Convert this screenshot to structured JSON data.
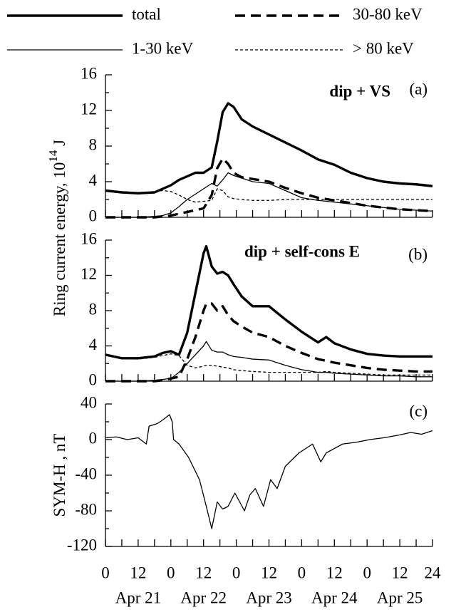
{
  "chart_data": [
    {
      "type": "line",
      "title": "dip + VS",
      "label": "(a)",
      "ylabel": [
        "Ring current energy, 10",
        "14",
        " J"
      ],
      "legend": "top",
      "xlim": [
        0,
        120
      ],
      "xticks": [
        0,
        12,
        24,
        36,
        48,
        60,
        72,
        84,
        96,
        108,
        120
      ],
      "ylim": [
        0,
        16
      ],
      "yticks": [
        0,
        4,
        8,
        12,
        16
      ],
      "x": [
        0,
        6,
        12,
        18,
        21,
        24,
        27,
        30,
        33,
        36,
        39,
        41,
        43,
        45,
        47,
        50,
        54,
        60,
        66,
        72,
        78,
        84,
        90,
        96,
        102,
        108,
        114,
        120
      ],
      "series": [
        {
          "name": "total",
          "color": "#000000",
          "style": "solid",
          "weight": "bold",
          "values": [
            3.0,
            2.8,
            2.7,
            2.8,
            3.2,
            3.6,
            4.2,
            4.6,
            5.0,
            5.0,
            5.6,
            8.5,
            11.8,
            12.8,
            12.4,
            11.0,
            10.2,
            9.3,
            8.4,
            7.5,
            6.5,
            5.9,
            5.0,
            4.4,
            4.0,
            3.8,
            3.7,
            3.5
          ]
        },
        {
          "name": "30-80 keV",
          "color": "#000000",
          "style": "dashed",
          "weight": "bold",
          "values": [
            0,
            0,
            0,
            0,
            0.1,
            0.2,
            0.4,
            0.6,
            0.8,
            1.0,
            2.5,
            5.5,
            6.6,
            6.0,
            5.0,
            4.5,
            4.3,
            4.0,
            3.3,
            2.7,
            2.2,
            1.9,
            1.6,
            1.3,
            1.1,
            0.9,
            0.8,
            0.7
          ]
        },
        {
          "name": "1-30 keV",
          "color": "#000000",
          "style": "solid",
          "weight": "normal",
          "values": [
            0,
            0,
            0,
            0.1,
            0.2,
            0.5,
            1.2,
            2.0,
            2.6,
            3.2,
            3.8,
            3.5,
            4.2,
            5.0,
            4.7,
            4.4,
            4.0,
            3.8,
            3.0,
            2.2,
            1.9,
            1.7,
            1.5,
            1.3,
            1.1,
            0.9,
            0.8,
            0.7
          ]
        },
        {
          "name": "> 80 keV",
          "color": "#000000",
          "style": "dashed",
          "weight": "normal",
          "values": [
            3.0,
            2.8,
            2.7,
            2.9,
            3.0,
            2.9,
            2.5,
            2.0,
            1.7,
            1.8,
            1.9,
            3.2,
            3.0,
            2.3,
            2.1,
            2.0,
            1.9,
            1.9,
            2.0,
            2.0,
            2.0,
            2.0,
            2.0,
            2.0,
            2.0,
            2.0,
            2.0,
            2.0
          ]
        }
      ]
    },
    {
      "type": "line",
      "title": "dip + self-cons E",
      "label": "(b)",
      "xlim": [
        0,
        120
      ],
      "xticks": [
        0,
        12,
        24,
        36,
        48,
        60,
        72,
        84,
        96,
        108,
        120
      ],
      "ylim": [
        0,
        16
      ],
      "yticks": [
        0,
        4,
        8,
        12,
        16
      ],
      "x": [
        0,
        6,
        12,
        18,
        21,
        24,
        27,
        30,
        33,
        36,
        37,
        39,
        41,
        43,
        45,
        47,
        50,
        54,
        60,
        66,
        72,
        78,
        81,
        84,
        90,
        96,
        102,
        108,
        114,
        120
      ],
      "series": [
        {
          "color": "#000000",
          "style": "solid",
          "weight": "bold",
          "values": [
            3.0,
            2.6,
            2.6,
            2.8,
            3.2,
            3.4,
            3.0,
            5.5,
            10.0,
            14.5,
            15.3,
            13.0,
            12.2,
            12.4,
            12.0,
            11.0,
            9.6,
            8.5,
            8.5,
            7.0,
            5.6,
            4.4,
            5.0,
            4.3,
            3.6,
            3.1,
            2.9,
            2.8,
            2.8,
            2.8
          ]
        },
        {
          "color": "#000000",
          "style": "dashed",
          "weight": "bold",
          "values": [
            0,
            0,
            0,
            0,
            0.1,
            0.3,
            0.5,
            2.5,
            5.0,
            8.0,
            8.8,
            8.8,
            8.0,
            8.5,
            7.5,
            6.8,
            6.2,
            5.5,
            5.0,
            4.0,
            3.2,
            2.5,
            2.3,
            2.1,
            1.8,
            1.5,
            1.3,
            1.2,
            1.1,
            1.1
          ]
        },
        {
          "color": "#000000",
          "style": "solid",
          "weight": "normal",
          "values": [
            0,
            0,
            0,
            0.1,
            0.2,
            0.3,
            1.0,
            2.0,
            3.0,
            4.0,
            4.5,
            3.5,
            3.3,
            3.3,
            3.0,
            2.8,
            2.7,
            2.5,
            2.4,
            1.8,
            1.3,
            1.0,
            1.0,
            0.9,
            0.8,
            0.7,
            0.6,
            0.6,
            0.5,
            0.5
          ]
        },
        {
          "color": "#000000",
          "style": "dashed",
          "weight": "normal",
          "values": [
            3.0,
            2.6,
            2.5,
            2.7,
            2.9,
            3.1,
            2.9,
            1.8,
            1.5,
            1.7,
            1.8,
            1.8,
            1.7,
            1.6,
            1.5,
            1.3,
            1.2,
            1.1,
            1.0,
            1.0,
            1.0,
            1.0,
            1.1,
            1.0,
            0.9,
            0.8,
            0.7,
            0.7,
            0.7,
            0.7
          ]
        }
      ]
    },
    {
      "type": "line",
      "label": "(c)",
      "ylabel": [
        "SYM-H , nT"
      ],
      "xlim": [
        0,
        120
      ],
      "xticks": [
        {
          "value": 0,
          "label": "0"
        },
        {
          "value": 12,
          "label": "12"
        },
        {
          "value": 24,
          "label": "0"
        },
        {
          "value": 36,
          "label": "12"
        },
        {
          "value": 48,
          "label": "0"
        },
        {
          "value": 60,
          "label": "12"
        },
        {
          "value": 72,
          "label": "0"
        },
        {
          "value": 84,
          "label": "12"
        },
        {
          "value": 96,
          "label": "0"
        },
        {
          "value": 108,
          "label": "12"
        },
        {
          "value": 120,
          "label": "24"
        }
      ],
      "day_labels": [
        "Apr 21",
        "Apr 22",
        "Apr 23",
        "Apr 24",
        "Apr 25"
      ],
      "ylim": [
        -120,
        40
      ],
      "yticks": [
        -120,
        -80,
        -40,
        0,
        40
      ],
      "x": [
        0,
        4,
        8,
        12,
        15,
        16,
        19,
        21,
        23.5,
        24.5,
        25,
        27,
        30.5,
        34.5,
        37,
        39,
        41,
        43,
        45,
        47.5,
        51,
        53,
        55,
        58,
        60.6,
        63,
        66,
        71,
        76,
        79,
        81,
        87,
        92,
        97,
        102,
        107.6,
        112,
        116,
        120
      ],
      "series": [
        {
          "color": "#000000",
          "style": "solid",
          "weight": "normal",
          "values": [
            2,
            3,
            0,
            2,
            -5,
            15,
            18,
            22,
            28,
            20,
            0,
            -5,
            -20,
            -45,
            -75,
            -100,
            -70,
            -78,
            -75,
            -60,
            -80,
            -62,
            -55,
            -75,
            -45,
            -55,
            -30,
            -15,
            -5,
            -25,
            -15,
            -5,
            -3,
            0,
            2,
            5,
            8,
            6,
            10
          ]
        }
      ]
    }
  ]
}
